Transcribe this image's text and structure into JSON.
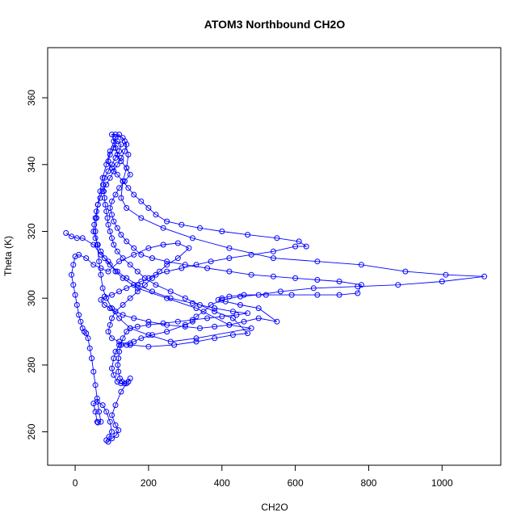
{
  "chart_data": {
    "type": "scatter",
    "title": "ATOM3 Northbound CH2O",
    "xlabel": "CH2O",
    "ylabel": "Theta (K)",
    "xlim": [
      -75,
      1160
    ],
    "ylim": [
      250,
      375
    ],
    "x_ticks": [
      0,
      200,
      400,
      600,
      800,
      1000
    ],
    "y_ticks": [
      260,
      280,
      300,
      320,
      340,
      360
    ],
    "x_tick_labels": [
      "0",
      "200",
      "400",
      "600",
      "800",
      "1000"
    ],
    "y_tick_labels": [
      "260",
      "280",
      "300",
      "320",
      "340",
      "360"
    ],
    "grid": false,
    "legend": "none",
    "marker": "open-circle",
    "connected": true,
    "color": "#0000ff",
    "series": [
      {
        "points": [
          [
            -25,
            319.5
          ],
          [
            -10,
            318.5
          ],
          [
            5,
            318
          ],
          [
            20,
            318
          ],
          [
            50,
            316
          ],
          [
            70,
            313
          ],
          [
            90,
            311
          ],
          [
            110,
            308
          ],
          [
            130,
            306
          ],
          [
            170,
            303
          ],
          [
            250,
            300
          ],
          [
            330,
            297
          ],
          [
            420,
            292
          ],
          [
            480,
            291
          ],
          [
            330,
            288
          ],
          [
            260,
            287
          ],
          [
            200,
            289
          ],
          [
            150,
            291
          ],
          [
            120,
            294
          ],
          [
            100,
            297
          ],
          [
            85,
            300
          ],
          [
            75,
            303
          ],
          [
            70,
            307
          ],
          [
            65,
            311
          ],
          [
            60,
            316
          ],
          [
            55,
            320
          ],
          [
            58,
            324
          ],
          [
            62,
            328
          ],
          [
            68,
            332
          ],
          [
            75,
            336
          ],
          [
            85,
            340
          ],
          [
            95,
            344
          ],
          [
            110,
            348
          ],
          [
            120,
            349
          ],
          [
            135,
            347
          ],
          [
            145,
            343
          ],
          [
            140,
            339
          ],
          [
            130,
            335
          ],
          [
            125,
            330
          ],
          [
            140,
            327
          ],
          [
            180,
            324
          ],
          [
            240,
            321
          ],
          [
            320,
            318
          ],
          [
            420,
            315
          ],
          [
            540,
            312
          ],
          [
            660,
            311
          ],
          [
            780,
            310
          ],
          [
            900,
            308
          ],
          [
            1010,
            307
          ],
          [
            1115,
            306.5
          ],
          [
            1000,
            305
          ],
          [
            880,
            304
          ],
          [
            770,
            303.5
          ],
          [
            650,
            303
          ],
          [
            560,
            302
          ],
          [
            500,
            301
          ],
          [
            450,
            300.5
          ],
          [
            400,
            299.5
          ],
          [
            370,
            298
          ],
          [
            350,
            296
          ],
          [
            330,
            294.5
          ],
          [
            320,
            293
          ],
          [
            300,
            292
          ],
          [
            250,
            290
          ],
          [
            210,
            289
          ],
          [
            180,
            288
          ],
          [
            160,
            287
          ],
          [
            150,
            286.5
          ],
          [
            140,
            286
          ],
          [
            120,
            286
          ],
          [
            110,
            284
          ],
          [
            105,
            282
          ],
          [
            100,
            279
          ],
          [
            105,
            277
          ],
          [
            115,
            275
          ],
          [
            125,
            274.5
          ],
          [
            140,
            274.5
          ],
          [
            125,
            272
          ],
          [
            110,
            268
          ],
          [
            100,
            265
          ],
          [
            110,
            262
          ],
          [
            118,
            260.5
          ],
          [
            112,
            259
          ],
          [
            100,
            258
          ],
          [
            90,
            257
          ],
          [
            85,
            257.5
          ],
          [
            92,
            258.5
          ],
          [
            100,
            260
          ],
          [
            95,
            263
          ],
          [
            85,
            266
          ],
          [
            75,
            268
          ],
          [
            60,
            269
          ],
          [
            50,
            268.5
          ],
          [
            55,
            266
          ],
          [
            60,
            263
          ],
          [
            62,
            262.8
          ],
          [
            70,
            263
          ],
          [
            65,
            266
          ],
          [
            60,
            270
          ],
          [
            55,
            274
          ],
          [
            50,
            278
          ],
          [
            45,
            282
          ],
          [
            40,
            285
          ],
          [
            35,
            288
          ],
          [
            30,
            289.5
          ],
          [
            25,
            290
          ],
          [
            20,
            291
          ],
          [
            15,
            293
          ],
          [
            10,
            295
          ],
          [
            5,
            298
          ],
          [
            0,
            301
          ],
          [
            -5,
            304
          ],
          [
            -10,
            307
          ],
          [
            -5,
            310
          ],
          [
            0,
            312.5
          ],
          [
            10,
            313
          ],
          [
            30,
            312
          ],
          [
            50,
            310
          ],
          [
            70,
            309
          ],
          [
            90,
            308
          ],
          [
            120,
            311
          ],
          [
            160,
            313
          ],
          [
            200,
            315
          ],
          [
            240,
            316
          ],
          [
            280,
            316.5
          ],
          [
            310,
            315
          ],
          [
            280,
            312
          ],
          [
            250,
            310
          ],
          [
            230,
            308
          ],
          [
            210,
            306
          ],
          [
            190,
            304
          ],
          [
            170,
            302
          ],
          [
            150,
            300
          ],
          [
            130,
            298
          ],
          [
            110,
            296
          ],
          [
            100,
            294
          ],
          [
            95,
            292
          ],
          [
            90,
            290
          ],
          [
            100,
            288
          ],
          [
            120,
            287
          ],
          [
            150,
            286
          ],
          [
            200,
            285.5
          ],
          [
            270,
            286
          ],
          [
            330,
            287
          ],
          [
            380,
            288
          ],
          [
            430,
            289
          ],
          [
            470,
            289.5
          ],
          [
            430,
            294
          ],
          [
            380,
            296
          ],
          [
            340,
            298
          ],
          [
            300,
            300
          ],
          [
            260,
            302
          ],
          [
            220,
            304
          ],
          [
            190,
            306
          ],
          [
            170,
            308
          ],
          [
            150,
            310
          ],
          [
            130,
            312
          ],
          [
            115,
            314
          ],
          [
            105,
            316
          ],
          [
            100,
            318
          ],
          [
            95,
            320
          ],
          [
            90,
            322
          ],
          [
            88,
            324
          ],
          [
            85,
            326
          ],
          [
            82,
            328
          ],
          [
            80,
            330
          ],
          [
            78,
            332
          ],
          [
            76,
            334
          ],
          [
            80,
            336
          ],
          [
            90,
            338
          ],
          [
            100,
            340
          ],
          [
            110,
            342
          ],
          [
            120,
            344
          ],
          [
            125,
            346
          ],
          [
            115,
            347
          ],
          [
            105,
            345
          ],
          [
            95,
            343
          ],
          [
            90,
            341
          ],
          [
            100,
            339
          ],
          [
            115,
            337
          ],
          [
            130,
            335
          ],
          [
            145,
            333
          ],
          [
            160,
            331
          ],
          [
            180,
            329
          ],
          [
            200,
            327
          ],
          [
            220,
            325
          ],
          [
            250,
            323
          ],
          [
            290,
            322
          ],
          [
            340,
            321
          ],
          [
            400,
            320
          ],
          [
            470,
            319
          ],
          [
            550,
            318
          ],
          [
            610,
            317
          ],
          [
            630,
            315.5
          ],
          [
            600,
            315.5
          ],
          [
            540,
            314
          ],
          [
            480,
            313
          ],
          [
            420,
            312
          ],
          [
            370,
            311
          ],
          [
            330,
            310
          ],
          [
            290,
            309
          ],
          [
            250,
            308
          ],
          [
            220,
            307
          ],
          [
            200,
            306
          ],
          [
            180,
            305
          ],
          [
            160,
            304
          ],
          [
            140,
            303
          ],
          [
            120,
            302
          ],
          [
            100,
            301
          ],
          [
            80,
            300.5
          ],
          [
            70,
            299.5
          ],
          [
            80,
            298
          ],
          [
            95,
            297
          ],
          [
            110,
            296
          ],
          [
            130,
            295
          ],
          [
            160,
            294
          ],
          [
            200,
            293
          ],
          [
            250,
            292
          ],
          [
            300,
            291.5
          ],
          [
            340,
            291
          ],
          [
            380,
            291.5
          ],
          [
            420,
            292
          ],
          [
            460,
            293
          ],
          [
            500,
            294
          ],
          [
            550,
            293
          ],
          [
            500,
            297
          ],
          [
            450,
            298
          ],
          [
            410,
            299
          ],
          [
            390,
            299.5
          ],
          [
            400,
            300
          ],
          [
            420,
            300.5
          ],
          [
            460,
            301
          ],
          [
            520,
            301
          ],
          [
            590,
            301
          ],
          [
            660,
            301
          ],
          [
            720,
            301
          ],
          [
            770,
            301.5
          ],
          [
            780,
            304
          ],
          [
            720,
            305
          ],
          [
            660,
            305.5
          ],
          [
            600,
            306
          ],
          [
            540,
            306.5
          ],
          [
            480,
            307
          ],
          [
            420,
            308
          ],
          [
            360,
            309
          ],
          [
            300,
            310
          ],
          [
            250,
            311
          ],
          [
            210,
            312
          ],
          [
            180,
            313
          ],
          [
            160,
            315
          ],
          [
            140,
            317
          ],
          [
            125,
            319
          ],
          [
            115,
            321
          ],
          [
            105,
            323
          ],
          [
            100,
            325
          ],
          [
            95,
            327
          ],
          [
            100,
            329
          ],
          [
            110,
            331
          ],
          [
            120,
            333
          ],
          [
            135,
            335
          ],
          [
            150,
            337
          ],
          [
            140,
            339
          ],
          [
            125,
            341
          ],
          [
            115,
            343
          ],
          [
            110,
            345
          ],
          [
            105,
            347
          ],
          [
            100,
            349
          ],
          [
            110,
            349
          ],
          [
            130,
            348
          ],
          [
            140,
            346
          ],
          [
            135,
            344
          ],
          [
            125,
            342
          ],
          [
            115,
            340
          ],
          [
            105,
            338
          ],
          [
            95,
            336
          ],
          [
            85,
            334
          ],
          [
            75,
            332
          ],
          [
            68,
            330
          ],
          [
            62,
            328
          ],
          [
            58,
            326
          ],
          [
            55,
            324
          ],
          [
            52,
            322
          ],
          [
            50,
            320
          ],
          [
            55,
            318
          ],
          [
            62,
            316
          ],
          [
            70,
            314
          ],
          [
            80,
            312
          ],
          [
            95,
            310
          ],
          [
            115,
            308
          ],
          [
            140,
            306
          ],
          [
            170,
            304
          ],
          [
            210,
            302
          ],
          [
            260,
            300
          ],
          [
            320,
            298.5
          ],
          [
            380,
            297
          ],
          [
            430,
            296
          ],
          [
            470,
            295.5
          ],
          [
            440,
            295
          ],
          [
            400,
            294.5
          ],
          [
            360,
            294
          ],
          [
            320,
            293.5
          ],
          [
            280,
            293
          ],
          [
            240,
            292.5
          ],
          [
            200,
            292
          ],
          [
            170,
            291.5
          ],
          [
            150,
            291
          ],
          [
            140,
            290
          ],
          [
            130,
            288
          ],
          [
            125,
            286
          ],
          [
            120,
            284
          ],
          [
            118,
            282
          ],
          [
            116,
            280
          ],
          [
            118,
            278
          ],
          [
            122,
            276
          ],
          [
            128,
            275
          ],
          [
            135,
            274.5
          ],
          [
            145,
            275
          ],
          [
            150,
            276
          ]
        ]
      }
    ]
  }
}
